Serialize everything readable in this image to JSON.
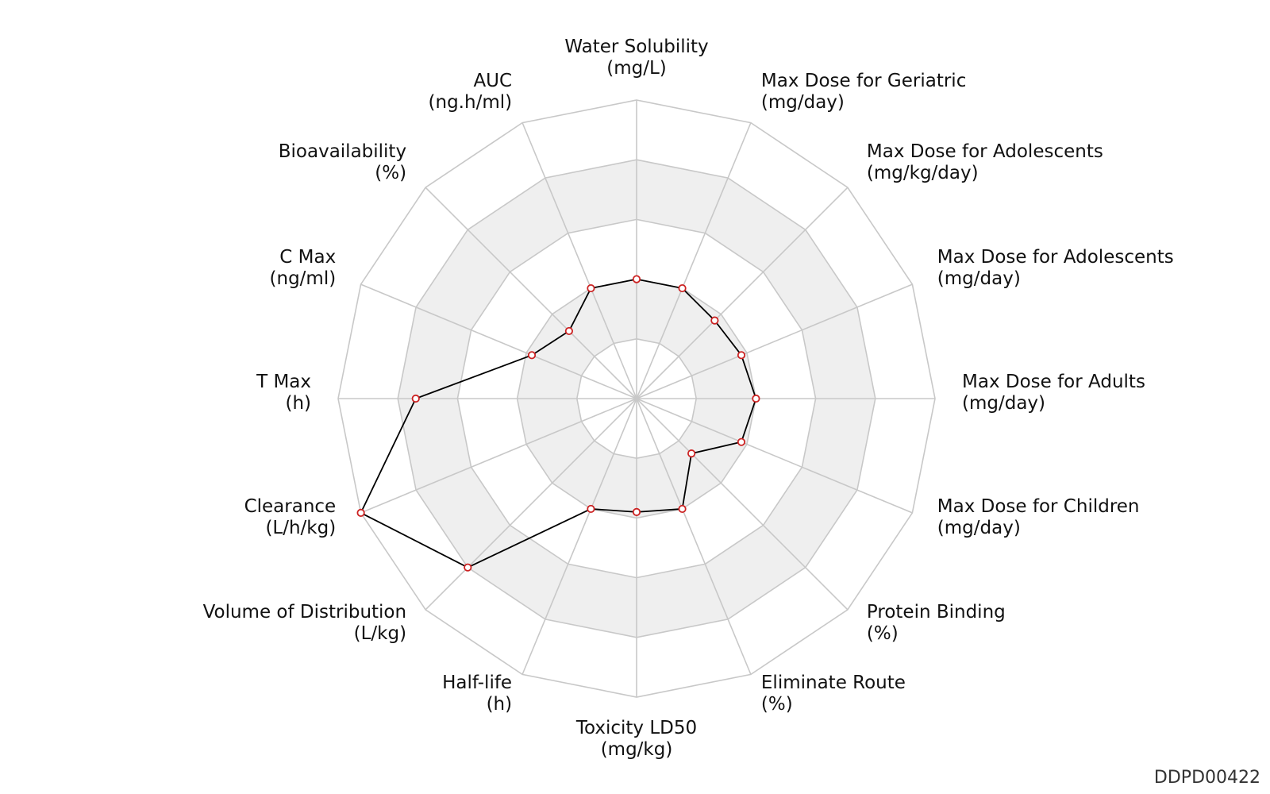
{
  "chart_data": {
    "type": "radar",
    "axes": [
      {
        "name": "Water Solubility",
        "unit": "(mg/L)",
        "value": 0.4
      },
      {
        "name": "Max Dose for Geriatric",
        "unit": "(mg/day)",
        "value": 0.4
      },
      {
        "name": "Max Dose for Adolescents",
        "unit": "(mg/kg/day)",
        "value": 0.37
      },
      {
        "name": "Max Dose for Adolescents",
        "unit": "(mg/day)",
        "value": 0.38
      },
      {
        "name": "Max Dose for Adults",
        "unit": "(mg/day)",
        "value": 0.4
      },
      {
        "name": "Max Dose for Children",
        "unit": "(mg/day)",
        "value": 0.38
      },
      {
        "name": "Protein Binding",
        "unit": "(%)",
        "value": 0.26
      },
      {
        "name": "Eliminate Route",
        "unit": "(%)",
        "value": 0.4
      },
      {
        "name": "Toxicity LD50",
        "unit": "(mg/kg)",
        "value": 0.38
      },
      {
        "name": "Half-life",
        "unit": "(h)",
        "value": 0.4
      },
      {
        "name": "Volume of Distribution",
        "unit": "(L/kg)",
        "value": 0.8
      },
      {
        "name": "Clearance",
        "unit": "(L/h/kg)",
        "value": 1.0
      },
      {
        "name": "T Max",
        "unit": "(h)",
        "value": 0.74
      },
      {
        "name": "C Max",
        "unit": "(ng/ml)",
        "value": 0.38
      },
      {
        "name": "Bioavailability",
        "unit": "(%)",
        "value": 0.32
      },
      {
        "name": "AUC",
        "unit": "(ng.h/ml)",
        "value": 0.4
      }
    ],
    "range": [
      0,
      1
    ],
    "rings": 5,
    "grid": true,
    "band_fill": "#efefef",
    "grid_color": "#c8c8c8",
    "line_color": "#000000",
    "marker_color": "#cc2222"
  },
  "chart_id": "DDPD00422"
}
